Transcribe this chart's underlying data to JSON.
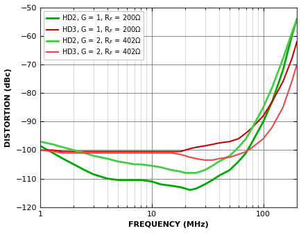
{
  "title": "",
  "xlabel": "FREQUENCY (MHz)",
  "ylabel": "DISTORTION (dBc)",
  "xlim": [
    1,
    200
  ],
  "ylim": [
    -120,
    -50
  ],
  "yticks": [
    -120,
    -110,
    -100,
    -90,
    -80,
    -70,
    -60,
    -50
  ],
  "background_color": "#ffffff",
  "grid_major_color": "#888888",
  "grid_minor_color": "#bbbbbb",
  "legend": [
    {
      "label": "HD2, G = 1, R$_F$ = 200Ω",
      "color": "#00aa00",
      "lw": 2.0
    },
    {
      "label": "HD3, G = 1, R$_F$ = 200Ω",
      "color": "#cc0000",
      "lw": 1.5
    },
    {
      "label": "HD2, G = 2, R$_F$ = 402Ω",
      "color": "#44cc44",
      "lw": 2.0
    },
    {
      "label": "HD3, G = 2, R$_F$ = 402Ω",
      "color": "#ee4444",
      "lw": 1.5
    }
  ],
  "curves": {
    "hd2_g1": {
      "freq": [
        1,
        1.3,
        1.6,
        2,
        2.5,
        3,
        4,
        5,
        6,
        7,
        8,
        10,
        12,
        15,
        18,
        20,
        22,
        25,
        30,
        35,
        40,
        50,
        60,
        70,
        80,
        100,
        120,
        150,
        180,
        200
      ],
      "dist": [
        -98.5,
        -101,
        -103,
        -105,
        -107,
        -108.5,
        -110,
        -110.5,
        -110.5,
        -110.5,
        -110.5,
        -111,
        -112,
        -112.5,
        -113,
        -113.5,
        -114,
        -113.5,
        -112,
        -110.5,
        -109,
        -107,
        -104,
        -101,
        -97,
        -90,
        -83,
        -72,
        -60,
        -54
      ],
      "color": "#00aa00",
      "lw": 2.0
    },
    "hd3_g1": {
      "freq": [
        1,
        1.3,
        1.6,
        2,
        2.5,
        3,
        4,
        5,
        6,
        7,
        8,
        10,
        12,
        15,
        18,
        20,
        22,
        25,
        30,
        35,
        40,
        50,
        60,
        70,
        80,
        100,
        120,
        150,
        180,
        200
      ],
      "dist": [
        -100,
        -100,
        -100.5,
        -100.5,
        -100.5,
        -100.5,
        -100.5,
        -100.5,
        -100.5,
        -100.5,
        -100.5,
        -100.5,
        -100.5,
        -100.5,
        -100.5,
        -100,
        -99.5,
        -99,
        -98.5,
        -98,
        -97.5,
        -97,
        -96,
        -94,
        -92,
        -88,
        -83,
        -76,
        -68,
        -62
      ],
      "color": "#cc0000",
      "lw": 1.5
    },
    "hd2_g2": {
      "freq": [
        1,
        1.3,
        1.6,
        2,
        2.5,
        3,
        4,
        5,
        6,
        7,
        8,
        10,
        12,
        15,
        18,
        20,
        22,
        25,
        30,
        35,
        40,
        50,
        60,
        70,
        80,
        100,
        120,
        150,
        180,
        200
      ],
      "dist": [
        -97,
        -98,
        -99,
        -100,
        -101,
        -102,
        -103,
        -104,
        -104.5,
        -105,
        -105,
        -105.5,
        -106,
        -107,
        -107.5,
        -108,
        -108,
        -108,
        -107,
        -105.5,
        -104,
        -102,
        -99,
        -96,
        -92,
        -85,
        -78,
        -68,
        -59,
        -54
      ],
      "color": "#44cc44",
      "lw": 2.0
    },
    "hd3_g2": {
      "freq": [
        1,
        1.3,
        1.6,
        2,
        2.5,
        3,
        4,
        5,
        6,
        7,
        8,
        10,
        12,
        15,
        18,
        20,
        22,
        25,
        30,
        35,
        40,
        50,
        60,
        70,
        80,
        100,
        120,
        150,
        180,
        200
      ],
      "dist": [
        -100,
        -100.5,
        -101,
        -101,
        -101,
        -101,
        -101,
        -101,
        -101,
        -101,
        -101,
        -101,
        -101,
        -101,
        -101.5,
        -102,
        -102.5,
        -103,
        -103.5,
        -103.5,
        -103,
        -102.5,
        -101.5,
        -100.5,
        -99,
        -96,
        -92,
        -85,
        -76,
        -70
      ],
      "color": "#ee4444",
      "lw": 1.5
    }
  }
}
